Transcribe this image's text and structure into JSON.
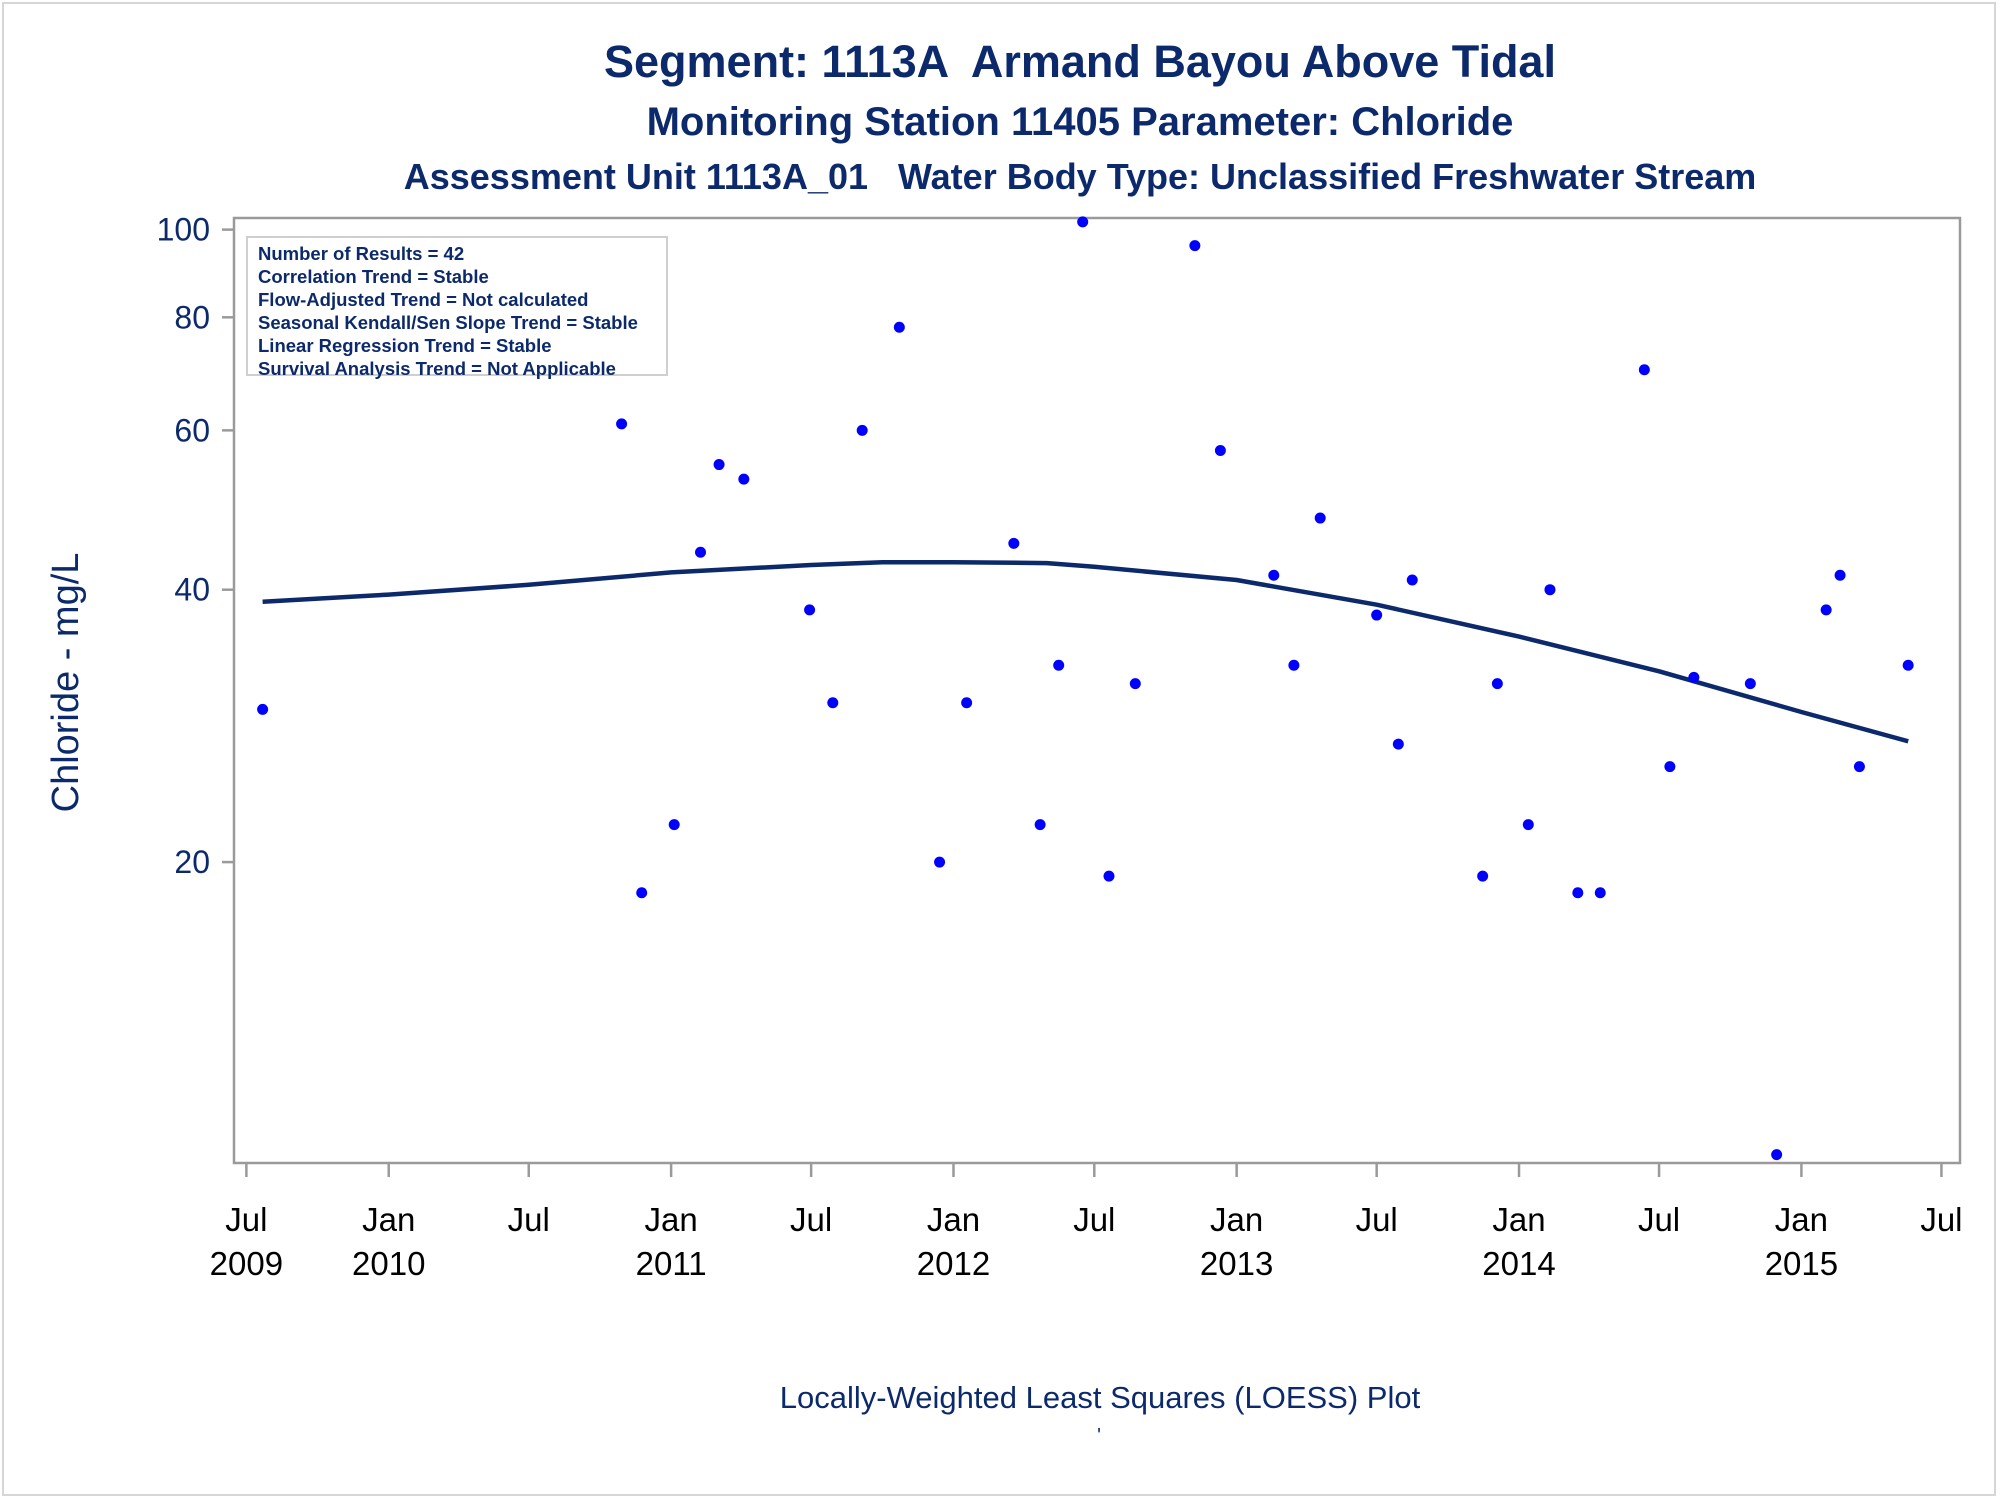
{
  "titles": {
    "line1": "Segment: 1113A  Armand Bayou Above Tidal",
    "line2": "Monitoring Station 11405 Parameter: Chloride",
    "line3": "Assessment Unit 1113A_01   Water Body Type: Unclassified Freshwater Stream"
  },
  "footer": "Locally-Weighted Least Squares (LOESS) Plot",
  "footer_mark": "'",
  "stats_box": [
    "Number of Results = 42",
    "Correlation Trend = Stable",
    "Flow-Adjusted Trend = Not calculated",
    "Seasonal Kendall/Sen Slope Trend = Stable",
    "Linear Regression Trend = Stable",
    "Survival Analysis Trend = Not Applicable"
  ],
  "colors": {
    "text": "#0c2a6b",
    "points": "#0000ff",
    "loess": "#0c2a6b",
    "axis": "#9a9a9a"
  },
  "chart_data": {
    "type": "scatter",
    "title": "Segment: 1113A  Armand Bayou Above Tidal",
    "ylabel": "Chloride - mg/L",
    "xlabel": "",
    "y_scale": "log",
    "ylim": [
      9.3,
      103
    ],
    "xlim": [
      "2009-06-15",
      "2015-07-25"
    ],
    "y_ticks": [
      20,
      40,
      60,
      80,
      100
    ],
    "x_ticks": [
      {
        "date": "2009-07-01",
        "label": [
          "Jul",
          "2009"
        ]
      },
      {
        "date": "2010-01-01",
        "label": [
          "Jan",
          "2010"
        ]
      },
      {
        "date": "2010-07-01",
        "label": [
          "Jul",
          ""
        ]
      },
      {
        "date": "2011-01-01",
        "label": [
          "Jan",
          "2011"
        ]
      },
      {
        "date": "2011-07-01",
        "label": [
          "Jul",
          ""
        ]
      },
      {
        "date": "2012-01-01",
        "label": [
          "Jan",
          "2012"
        ]
      },
      {
        "date": "2012-07-01",
        "label": [
          "Jul",
          ""
        ]
      },
      {
        "date": "2013-01-01",
        "label": [
          "Jan",
          "2013"
        ]
      },
      {
        "date": "2013-07-01",
        "label": [
          "Jul",
          ""
        ]
      },
      {
        "date": "2014-01-01",
        "label": [
          "Jan",
          "2014"
        ]
      },
      {
        "date": "2014-07-01",
        "label": [
          "Jul",
          ""
        ]
      },
      {
        "date": "2015-01-01",
        "label": [
          "Jan",
          "2015"
        ]
      },
      {
        "date": "2015-07-01",
        "label": [
          "Jul",
          ""
        ]
      }
    ],
    "series": [
      {
        "type": "scatter",
        "points": [
          {
            "x": "2009-07-22",
            "y": 29.5
          },
          {
            "x": "2010-10-29",
            "y": 61
          },
          {
            "x": "2010-11-24",
            "y": 18.5
          },
          {
            "x": "2011-01-05",
            "y": 22
          },
          {
            "x": "2011-02-08",
            "y": 44
          },
          {
            "x": "2011-03-04",
            "y": 55
          },
          {
            "x": "2011-04-05",
            "y": 53
          },
          {
            "x": "2011-06-29",
            "y": 38
          },
          {
            "x": "2011-07-29",
            "y": 30
          },
          {
            "x": "2011-09-05",
            "y": 60
          },
          {
            "x": "2011-10-23",
            "y": 78
          },
          {
            "x": "2011-12-14",
            "y": 20
          },
          {
            "x": "2012-01-18",
            "y": 30
          },
          {
            "x": "2012-03-19",
            "y": 45
          },
          {
            "x": "2012-04-22",
            "y": 22
          },
          {
            "x": "2012-05-16",
            "y": 33
          },
          {
            "x": "2012-06-16",
            "y": 102
          },
          {
            "x": "2012-07-20",
            "y": 19.3
          },
          {
            "x": "2012-08-23",
            "y": 31.5
          },
          {
            "x": "2012-11-08",
            "y": 96
          },
          {
            "x": "2012-12-11",
            "y": 57
          },
          {
            "x": "2013-02-18",
            "y": 41.5
          },
          {
            "x": "2013-03-16",
            "y": 33
          },
          {
            "x": "2013-04-19",
            "y": 48
          },
          {
            "x": "2013-07-01",
            "y": 37.5
          },
          {
            "x": "2013-07-29",
            "y": 27
          },
          {
            "x": "2013-08-16",
            "y": 41
          },
          {
            "x": "2013-11-15",
            "y": 19.3
          },
          {
            "x": "2013-12-04",
            "y": 31.5
          },
          {
            "x": "2014-01-13",
            "y": 22
          },
          {
            "x": "2014-02-10",
            "y": 40
          },
          {
            "x": "2014-03-18",
            "y": 18.5
          },
          {
            "x": "2014-04-16",
            "y": 18.5
          },
          {
            "x": "2014-06-12",
            "y": 70
          },
          {
            "x": "2014-07-15",
            "y": 25.5
          },
          {
            "x": "2014-08-15",
            "y": 32
          },
          {
            "x": "2014-10-27",
            "y": 31.5
          },
          {
            "x": "2014-11-30",
            "y": 9.5
          },
          {
            "x": "2015-02-02",
            "y": 38
          },
          {
            "x": "2015-02-20",
            "y": 41.5
          },
          {
            "x": "2015-03-17",
            "y": 25.5
          },
          {
            "x": "2015-05-19",
            "y": 33
          }
        ]
      },
      {
        "type": "line",
        "points": [
          {
            "x": "2009-07-22",
            "y": 38.8
          },
          {
            "x": "2010-01-01",
            "y": 39.5
          },
          {
            "x": "2010-07-01",
            "y": 40.5
          },
          {
            "x": "2011-01-01",
            "y": 41.8
          },
          {
            "x": "2011-07-01",
            "y": 42.6
          },
          {
            "x": "2011-10-01",
            "y": 42.9
          },
          {
            "x": "2012-01-01",
            "y": 42.9
          },
          {
            "x": "2012-05-01",
            "y": 42.8
          },
          {
            "x": "2012-07-01",
            "y": 42.4
          },
          {
            "x": "2013-01-01",
            "y": 41.0
          },
          {
            "x": "2013-07-01",
            "y": 38.5
          },
          {
            "x": "2014-01-01",
            "y": 35.5
          },
          {
            "x": "2014-07-01",
            "y": 32.5
          },
          {
            "x": "2015-01-01",
            "y": 29.3
          },
          {
            "x": "2015-05-19",
            "y": 27.2
          }
        ]
      }
    ]
  }
}
